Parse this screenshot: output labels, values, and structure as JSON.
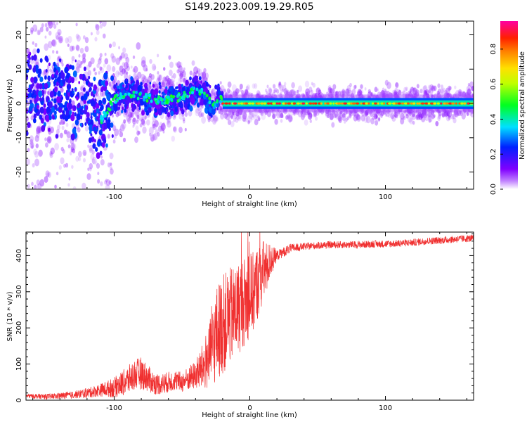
{
  "figure": {
    "title": "S149.2023.009.19.29.R05"
  },
  "chart_data": [
    {
      "type": "heatmap",
      "title": "",
      "xlabel": "Height of straight line (km)",
      "ylabel": "Frequency (Hz)",
      "xlim": [
        -165,
        165
      ],
      "ylim": [
        -25,
        24
      ],
      "xticks": [
        -100,
        0,
        100
      ],
      "xtick_labels": [
        "-100",
        "0",
        "100"
      ],
      "yticks": [
        -20,
        -10,
        0,
        10,
        20
      ],
      "ytick_labels": [
        "-20",
        "-10",
        "0",
        "10",
        "20"
      ],
      "colorbar": {
        "label": "Normalized spectral amplitude",
        "range": [
          0,
          0.96
        ],
        "ticks": [
          0,
          0.2,
          0.4,
          0.6,
          0.8
        ],
        "tick_labels": [
          "0.0",
          "0.2",
          "0.4",
          "0.6",
          "0.8"
        ],
        "colormap": "rainbow (white-violet-blue-cyan-green-yellow-red-magenta)"
      },
      "ridge": {
        "x": [
          -165,
          -140,
          -120,
          -110,
          -100,
          -90,
          -80,
          -70,
          -60,
          -50,
          -45,
          -40,
          -35,
          -30,
          -27,
          -25,
          -22,
          -20,
          -15,
          -10,
          -5,
          0,
          5,
          10,
          20,
          50,
          100,
          165
        ],
        "y": [
          3,
          2,
          1,
          -5,
          1,
          3,
          2,
          1,
          1,
          2,
          3,
          4,
          3,
          1,
          -1,
          0,
          2,
          0,
          0,
          0,
          0.5,
          -1,
          0,
          0,
          0,
          0,
          0,
          0
        ]
      }
    },
    {
      "type": "line",
      "title": "",
      "xlabel": "Height of straight line (km)",
      "ylabel": "SNR (10 * v/v)",
      "xlim": [
        -165,
        165
      ],
      "ylim": [
        0,
        465
      ],
      "xticks": [
        -100,
        0,
        100
      ],
      "xtick_labels": [
        "-100",
        "0",
        "100"
      ],
      "yticks": [
        0,
        100,
        200,
        300,
        400
      ],
      "ytick_labels": [
        "0",
        "100",
        "200",
        "300",
        "400"
      ],
      "color": "#f03030",
      "series": [
        {
          "x": [
            -165,
            -150,
            -140,
            -130,
            -120,
            -110,
            -100,
            -95,
            -90,
            -85,
            -80,
            -75,
            -70,
            -65,
            -60,
            -55,
            -50,
            -45,
            -40,
            -35,
            -30,
            -27,
            -25,
            -22,
            -20,
            -17,
            -15,
            -12,
            -10,
            -7,
            -5,
            -2,
            0,
            3,
            5,
            8,
            10,
            13,
            15,
            18,
            20,
            25,
            30,
            40,
            50,
            60,
            70,
            80,
            90,
            100,
            110,
            120,
            130,
            140,
            150,
            165
          ],
          "values": [
            12,
            10,
            12,
            15,
            20,
            28,
            35,
            45,
            55,
            70,
            75,
            60,
            45,
            45,
            50,
            55,
            50,
            60,
            70,
            90,
            120,
            150,
            180,
            200,
            210,
            220,
            230,
            240,
            250,
            260,
            270,
            280,
            290,
            300,
            320,
            340,
            355,
            370,
            385,
            395,
            400,
            410,
            420,
            425,
            428,
            430,
            430,
            430,
            432,
            432,
            434,
            436,
            440,
            442,
            445,
            448
          ]
        }
      ],
      "noise_amplitude": {
        "x": [
          -165,
          -130,
          -110,
          -100,
          -90,
          -80,
          -70,
          -50,
          -40,
          -30,
          -25,
          -20,
          -10,
          0,
          10,
          15,
          20,
          40,
          165
        ],
        "values": [
          6,
          10,
          18,
          28,
          40,
          45,
          30,
          28,
          40,
          90,
          130,
          140,
          130,
          120,
          90,
          50,
          15,
          10,
          10
        ]
      }
    }
  ]
}
